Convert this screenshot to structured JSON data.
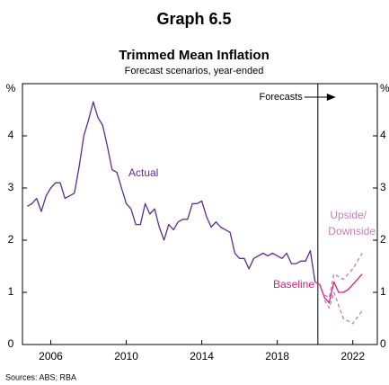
{
  "chart_data": {
    "type": "line",
    "title": "Graph 6.5",
    "subtitle": "Trimmed Mean Inflation",
    "subtitle2": "Forecast scenarios, year-ended",
    "source": "Sources: ABS; RBA",
    "forecast_label": "Forecasts",
    "forecast_start": 2020.15,
    "xlim": [
      2004.5,
      2023.3
    ],
    "xticks": [
      2006,
      2010,
      2014,
      2018,
      2022
    ],
    "ylim": [
      0,
      5
    ],
    "yticks": [
      0,
      1,
      2,
      3,
      4,
      {
        "value": 5,
        "label": "%"
      }
    ],
    "series": [
      {
        "name": "Actual",
        "color": "#5b2c8f",
        "dashed": false,
        "x": [
          2004.75,
          2005,
          2005.25,
          2005.5,
          2005.75,
          2006,
          2006.25,
          2006.5,
          2006.75,
          2007,
          2007.25,
          2007.5,
          2007.75,
          2008,
          2008.25,
          2008.5,
          2008.75,
          2009,
          2009.25,
          2009.5,
          2009.75,
          2010,
          2010.25,
          2010.5,
          2010.75,
          2011,
          2011.25,
          2011.5,
          2011.75,
          2012,
          2012.25,
          2012.5,
          2012.75,
          2013,
          2013.25,
          2013.5,
          2013.75,
          2014,
          2014.25,
          2014.5,
          2014.75,
          2015,
          2015.25,
          2015.5,
          2015.75,
          2016,
          2016.25,
          2016.5,
          2016.75,
          2017,
          2017.25,
          2017.5,
          2017.75,
          2018,
          2018.25,
          2018.5,
          2018.75,
          2019,
          2019.25,
          2019.5,
          2019.75,
          2020
        ],
        "values": [
          2.65,
          2.7,
          2.8,
          2.55,
          2.85,
          3.0,
          3.1,
          3.1,
          2.8,
          2.85,
          2.9,
          3.4,
          4.0,
          4.3,
          4.65,
          4.35,
          4.2,
          3.8,
          3.35,
          3.3,
          3.0,
          2.7,
          2.6,
          2.3,
          2.3,
          2.7,
          2.5,
          2.6,
          2.25,
          2.0,
          2.3,
          2.2,
          2.35,
          2.4,
          2.4,
          2.7,
          2.7,
          2.75,
          2.45,
          2.25,
          2.35,
          2.25,
          2.2,
          2.15,
          1.75,
          1.65,
          1.65,
          1.45,
          1.65,
          1.7,
          1.75,
          1.7,
          1.75,
          1.7,
          1.65,
          1.75,
          1.55,
          1.55,
          1.6,
          1.6,
          1.8,
          1.2
        ]
      },
      {
        "name": "Baseline",
        "color": "#d6207e",
        "dashed": false,
        "x": [
          2020,
          2020.25,
          2020.5,
          2020.75,
          2021,
          2021.25,
          2021.5,
          2021.75,
          2022,
          2022.5
        ],
        "values": [
          1.2,
          1.15,
          0.9,
          0.8,
          1.2,
          1.0,
          1.0,
          1.05,
          1.15,
          1.35
        ]
      },
      {
        "name": "Upside/",
        "color": "#c77db5",
        "dashed": true,
        "x": [
          2020.5,
          2020.75,
          2021,
          2021.5,
          2022,
          2022.5
        ],
        "values": [
          0.95,
          0.9,
          1.35,
          1.25,
          1.45,
          1.75
        ]
      },
      {
        "name": "Downside",
        "color": "#c77db5",
        "dashed": true,
        "x": [
          2020.5,
          2020.75,
          2021,
          2021.5,
          2022,
          2022.5
        ],
        "values": [
          0.85,
          0.7,
          1.0,
          0.5,
          0.4,
          0.65
        ]
      }
    ]
  }
}
